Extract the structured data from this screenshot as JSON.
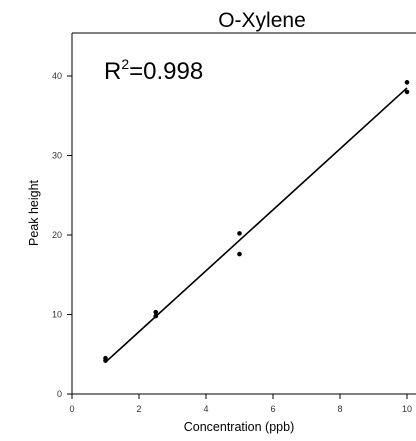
{
  "chart_data": {
    "type": "scatter",
    "title": "O-Xylene",
    "xlabel": "Concentration (ppb)",
    "ylabel": "Peak height",
    "xlim": [
      0,
      10
    ],
    "ylim": [
      0,
      42
    ],
    "x_ticks": [
      "0",
      "2",
      "4",
      "6",
      "8",
      "10"
    ],
    "y_ticks": [
      "0",
      "10",
      "20",
      "30",
      "40"
    ],
    "annotation": {
      "base": "R",
      "sup": "2",
      "rest": "=0.998"
    },
    "points": [
      {
        "x": 1,
        "y": 4.5
      },
      {
        "x": 1,
        "y": 4.2
      },
      {
        "x": 2.5,
        "y": 10.3
      },
      {
        "x": 2.5,
        "y": 9.8
      },
      {
        "x": 5,
        "y": 20.2
      },
      {
        "x": 5,
        "y": 17.6
      },
      {
        "x": 10,
        "y": 39.2
      },
      {
        "x": 10,
        "y": 38.0
      }
    ],
    "fit_line": {
      "x": [
        1,
        10
      ],
      "y": [
        4.0,
        38.5
      ]
    },
    "grid": false,
    "colors": {
      "points": "#000000",
      "line": "#000000",
      "axes": "#000000"
    }
  }
}
